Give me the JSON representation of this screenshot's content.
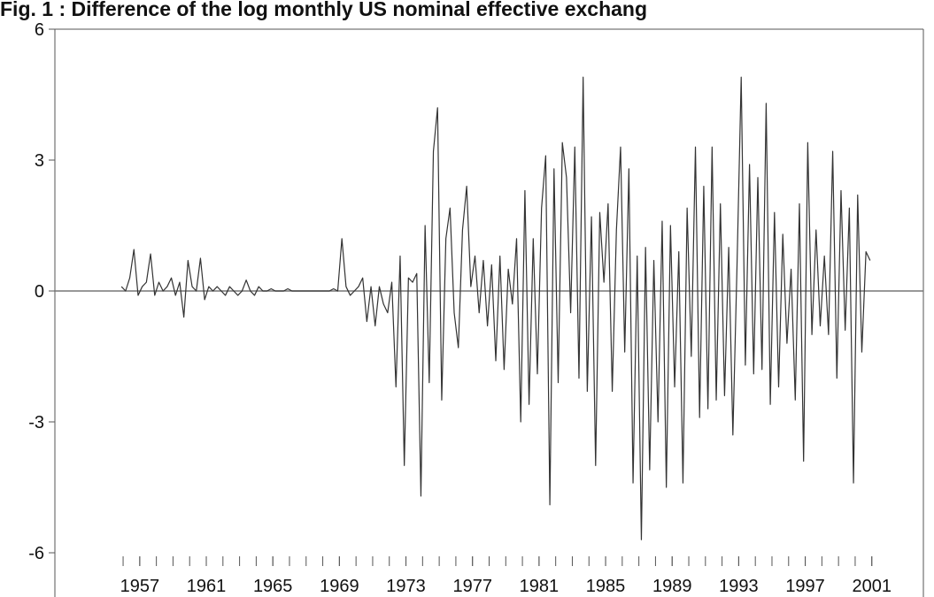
{
  "chart_data": {
    "type": "line",
    "title": "Fig. 1 : Difference of the log monthly US nominal effective exchang",
    "x": [
      1955.9,
      1956.15,
      1956.4,
      1956.65,
      1956.9,
      1957.15,
      1957.4,
      1957.65,
      1957.9,
      1958.15,
      1958.4,
      1958.65,
      1958.9,
      1959.15,
      1959.4,
      1959.65,
      1959.9,
      1960.15,
      1960.4,
      1960.65,
      1960.9,
      1961.15,
      1961.4,
      1961.65,
      1961.9,
      1962.15,
      1962.4,
      1962.65,
      1962.9,
      1963.15,
      1963.4,
      1963.65,
      1963.9,
      1964.15,
      1964.4,
      1964.65,
      1964.9,
      1965.15,
      1965.4,
      1965.65,
      1965.9,
      1966.15,
      1966.4,
      1966.65,
      1966.9,
      1967.15,
      1967.4,
      1967.65,
      1967.9,
      1968.15,
      1968.4,
      1968.65,
      1968.9,
      1969.15,
      1969.4,
      1969.65,
      1969.9,
      1970.15,
      1970.4,
      1970.65,
      1970.9,
      1971.15,
      1971.4,
      1971.65,
      1971.9,
      1972.15,
      1972.4,
      1972.65,
      1972.9,
      1973.15,
      1973.4,
      1973.65,
      1973.9,
      1974.15,
      1974.4,
      1974.65,
      1974.9,
      1975.15,
      1975.4,
      1975.65,
      1975.9,
      1976.15,
      1976.4,
      1976.65,
      1976.9,
      1977.15,
      1977.4,
      1977.65,
      1977.9,
      1978.15,
      1978.4,
      1978.65,
      1978.9,
      1979.15,
      1979.4,
      1979.65,
      1979.9,
      1980.15,
      1980.4,
      1980.65,
      1980.9,
      1981.15,
      1981.4,
      1981.65,
      1981.9,
      1982.15,
      1982.4,
      1982.65,
      1982.9,
      1983.15,
      1983.4,
      1983.65,
      1983.9,
      1984.15,
      1984.4,
      1984.65,
      1984.9,
      1985.15,
      1985.4,
      1985.65,
      1985.9,
      1986.15,
      1986.4,
      1986.65,
      1986.9,
      1987.15,
      1987.4,
      1987.65,
      1987.9,
      1988.15,
      1988.4,
      1988.65,
      1988.9,
      1989.15,
      1989.4,
      1989.65,
      1989.9,
      1990.15,
      1990.4,
      1990.65,
      1990.9,
      1991.15,
      1991.4,
      1991.65,
      1991.9,
      1992.15,
      1992.4,
      1992.65,
      1992.9,
      1993.15,
      1993.4,
      1993.65,
      1993.9,
      1994.15,
      1994.4,
      1994.65,
      1994.9,
      1995.15,
      1995.4,
      1995.65,
      1995.9,
      1996.15,
      1996.4,
      1996.65,
      1996.9,
      1997.15,
      1997.4,
      1997.65,
      1997.9,
      1998.15,
      1998.4,
      1998.65,
      1998.9,
      1999.15,
      1999.4,
      1999.65,
      1999.9,
      2000.15,
      2000.4,
      2000.65,
      2000.9
    ],
    "values": [
      0.1,
      0.0,
      0.3,
      0.95,
      -0.1,
      0.1,
      0.2,
      0.85,
      -0.1,
      0.2,
      0.0,
      0.1,
      0.3,
      -0.1,
      0.2,
      -0.6,
      0.7,
      0.1,
      0.0,
      0.75,
      -0.2,
      0.1,
      0.0,
      0.1,
      0.0,
      -0.1,
      0.1,
      0.0,
      -0.1,
      0.0,
      0.25,
      0.0,
      -0.1,
      0.1,
      0.0,
      0.0,
      0.05,
      0.0,
      0.0,
      0.0,
      0.05,
      0.0,
      0.0,
      0.0,
      0.0,
      0.0,
      0.0,
      0.0,
      0.0,
      0.0,
      0.0,
      0.05,
      0.0,
      1.2,
      0.1,
      -0.1,
      0.0,
      0.1,
      0.3,
      -0.7,
      0.1,
      -0.8,
      0.1,
      -0.3,
      -0.5,
      0.2,
      -2.2,
      0.8,
      -4.0,
      0.3,
      0.2,
      0.4,
      -4.7,
      1.5,
      -2.1,
      3.2,
      4.2,
      -2.5,
      1.2,
      1.9,
      -0.5,
      -1.3,
      1.4,
      2.4,
      0.1,
      0.8,
      -0.5,
      0.7,
      -0.8,
      0.6,
      -1.6,
      0.8,
      -1.8,
      0.5,
      -0.3,
      1.2,
      -3.0,
      2.3,
      -2.6,
      1.2,
      -1.9,
      1.9,
      3.1,
      -4.9,
      2.8,
      -2.1,
      3.4,
      2.6,
      -0.5,
      3.3,
      -2.0,
      4.9,
      -2.3,
      1.7,
      -4.0,
      1.8,
      0.2,
      2.0,
      -2.3,
      1.4,
      3.3,
      -1.4,
      2.8,
      -4.4,
      0.8,
      -5.7,
      1.0,
      -4.1,
      0.7,
      -3.0,
      1.6,
      -4.5,
      1.5,
      -2.2,
      0.9,
      -4.4,
      1.9,
      -1.5,
      3.3,
      -2.9,
      2.4,
      -2.7,
      3.3,
      -2.5,
      2.0,
      -2.4,
      1.0,
      -3.3,
      0.6,
      4.9,
      -1.7,
      2.9,
      -1.9,
      2.6,
      -1.8,
      4.3,
      -2.6,
      1.8,
      -2.2,
      1.3,
      -1.2,
      0.5,
      -2.5,
      2.0,
      -3.9,
      3.4,
      -1.0,
      1.4,
      -0.8,
      0.8,
      -1.0,
      3.2,
      -2.0,
      2.3,
      -0.9,
      1.9,
      -4.4,
      2.2,
      -1.4,
      0.9,
      0.7
    ],
    "color": "#333333",
    "zero_line_color": "#777777",
    "xlim": [
      1951.9,
      2004.1
    ],
    "xticks": [
      1957,
      1961,
      1965,
      1969,
      1973,
      1977,
      1981,
      1985,
      1989,
      1993,
      1997,
      2001
    ],
    "x_minor_ticks": [
      1956,
      1957,
      1958,
      1959,
      1960,
      1961,
      1962,
      1963,
      1964,
      1965,
      1966,
      1967,
      1968,
      1969,
      1970,
      1971,
      1972,
      1973,
      1974,
      1975,
      1976,
      1977,
      1978,
      1979,
      1980,
      1981,
      1982,
      1983,
      1984,
      1985,
      1986,
      1987,
      1988,
      1989,
      1990,
      1991,
      1992,
      1993,
      1994,
      1995,
      1996,
      1997,
      1998,
      1999,
      2000,
      2001
    ],
    "ylim": [
      -6,
      6
    ],
    "yticks": [
      -6,
      -3,
      0,
      3,
      6
    ]
  }
}
